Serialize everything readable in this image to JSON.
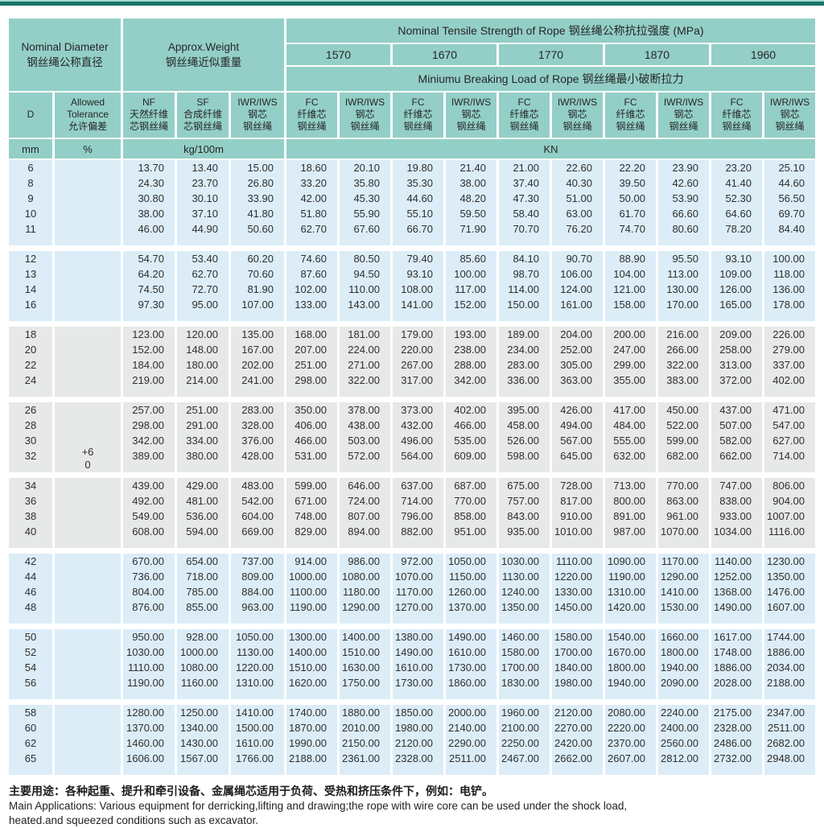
{
  "colors": {
    "header_bg": "#93cfc7",
    "band_blue": "#dcedf8",
    "band_gray": "#e7e8e8",
    "top_line_dark": "#17766b",
    "top_line_light": "#a6d8d0"
  },
  "header": {
    "nominal_diameter_en": "Nominal Diameter",
    "nominal_diameter_zh": "钢丝绳公称直径",
    "approx_weight_en": "Approx.Weight",
    "approx_weight_zh": "钢丝绳近似重量",
    "tensile_title": "Nominal Tensile Strength of Rope 钢丝绳公称抗拉强度 (MPa)",
    "strength_grades": [
      "1570",
      "1670",
      "1770",
      "1870",
      "1960"
    ],
    "breaking_title": "Miniumu Breaking Load of Rope 钢丝绳最小破断拉力",
    "sub_headers": [
      [
        "D"
      ],
      [
        "Allowed",
        "Tolerance",
        "允许偏差"
      ],
      [
        "NF",
        "天然纤维",
        "芯钢丝绳"
      ],
      [
        "SF",
        "合成纤维",
        "芯钢丝绳"
      ],
      [
        "IWR/IWS",
        "钢芯",
        "钢丝绳"
      ],
      [
        "FC",
        "纤维芯",
        "钢丝绳"
      ],
      [
        "IWR/IWS",
        "钢芯",
        "钢丝绳"
      ],
      [
        "FC",
        "纤维芯",
        "钢丝绳"
      ],
      [
        "IWR/IWS",
        "钢芯",
        "钢丝绳"
      ],
      [
        "FC",
        "纤维芯",
        "钢丝绳"
      ],
      [
        "IWR/IWS",
        "钢芯",
        "钢丝绳"
      ],
      [
        "FC",
        "纤维芯",
        "钢丝绳"
      ],
      [
        "IWR/IWS",
        "钢芯",
        "钢丝绳"
      ],
      [
        "FC",
        "纤维芯",
        "钢丝绳"
      ],
      [
        "IWR/IWS",
        "钢芯",
        "钢丝绳"
      ]
    ],
    "units": [
      {
        "label": "mm",
        "span": 1
      },
      {
        "label": "%",
        "span": 1
      },
      {
        "label": "kg/100m",
        "span": 3
      },
      {
        "label": "KN",
        "span": 10
      }
    ]
  },
  "tolerance": {
    "plus": "+6",
    "zero": "0"
  },
  "groups": [
    {
      "band": "blue",
      "rows": [
        [
          "6",
          "13.70",
          "13.40",
          "15.00",
          "18.60",
          "20.10",
          "19.80",
          "21.40",
          "21.00",
          "22.60",
          "22.20",
          "23.90",
          "23.20",
          "25.10"
        ],
        [
          "8",
          "24.30",
          "23.70",
          "26.80",
          "33.20",
          "35.80",
          "35.30",
          "38.00",
          "37.40",
          "40.30",
          "39.50",
          "42.60",
          "41.40",
          "44.60"
        ],
        [
          "9",
          "30.80",
          "30.10",
          "33.90",
          "42.00",
          "45.30",
          "44.60",
          "48.20",
          "47.30",
          "51.00",
          "50.00",
          "53.90",
          "52.30",
          "56.50"
        ],
        [
          "10",
          "38.00",
          "37.10",
          "41.80",
          "51.80",
          "55.90",
          "55.10",
          "59.50",
          "58.40",
          "63.00",
          "61.70",
          "66.60",
          "64.60",
          "69.70"
        ],
        [
          "11",
          "46.00",
          "44.90",
          "50.60",
          "62.70",
          "67.60",
          "66.70",
          "71.90",
          "70.70",
          "76.20",
          "74.70",
          "80.60",
          "78.20",
          "84.40"
        ]
      ]
    },
    {
      "band": "blue",
      "rows": [
        [
          "12",
          "54.70",
          "53.40",
          "60.20",
          "74.60",
          "80.50",
          "79.40",
          "85.60",
          "84.10",
          "90.70",
          "88.90",
          "95.50",
          "93.10",
          "100.00"
        ],
        [
          "13",
          "64.20",
          "62.70",
          "70.60",
          "87.60",
          "94.50",
          "93.10",
          "100.00",
          "98.70",
          "106.00",
          "104.00",
          "113.00",
          "109.00",
          "118.00"
        ],
        [
          "14",
          "74.50",
          "72.70",
          "81.90",
          "102.00",
          "110.00",
          "108.00",
          "117.00",
          "114.00",
          "124.00",
          "121.00",
          "130.00",
          "126.00",
          "136.00"
        ],
        [
          "16",
          "97.30",
          "95.00",
          "107.00",
          "133.00",
          "143.00",
          "141.00",
          "152.00",
          "150.00",
          "161.00",
          "158.00",
          "170.00",
          "165.00",
          "178.00"
        ]
      ]
    },
    {
      "band": "gray",
      "rows": [
        [
          "18",
          "123.00",
          "120.00",
          "135.00",
          "168.00",
          "181.00",
          "179.00",
          "193.00",
          "189.00",
          "204.00",
          "200.00",
          "216.00",
          "209.00",
          "226.00"
        ],
        [
          "20",
          "152.00",
          "148.00",
          "167.00",
          "207.00",
          "224.00",
          "220.00",
          "238.00",
          "234.00",
          "252.00",
          "247.00",
          "266.00",
          "258.00",
          "279.00"
        ],
        [
          "22",
          "184.00",
          "180.00",
          "202.00",
          "251.00",
          "271.00",
          "267.00",
          "288.00",
          "283.00",
          "305.00",
          "299.00",
          "322.00",
          "313.00",
          "337.00"
        ],
        [
          "24",
          "219.00",
          "214.00",
          "241.00",
          "298.00",
          "322.00",
          "317.00",
          "342.00",
          "336.00",
          "363.00",
          "355.00",
          "383.00",
          "372.00",
          "402.00"
        ]
      ]
    },
    {
      "band": "gray",
      "tolerance_label": true,
      "rows": [
        [
          "26",
          "257.00",
          "251.00",
          "283.00",
          "350.00",
          "378.00",
          "373.00",
          "402.00",
          "395.00",
          "426.00",
          "417.00",
          "450.00",
          "437.00",
          "471.00"
        ],
        [
          "28",
          "298.00",
          "291.00",
          "328.00",
          "406.00",
          "438.00",
          "432.00",
          "466.00",
          "458.00",
          "494.00",
          "484.00",
          "522.00",
          "507.00",
          "547.00"
        ],
        [
          "30",
          "342.00",
          "334.00",
          "376.00",
          "466.00",
          "503.00",
          "496.00",
          "535.00",
          "526.00",
          "567.00",
          "555.00",
          "599.00",
          "582.00",
          "627.00"
        ],
        [
          "32",
          "389.00",
          "380.00",
          "428.00",
          "531.00",
          "572.00",
          "564.00",
          "609.00",
          "598.00",
          "645.00",
          "632.00",
          "682.00",
          "662.00",
          "714.00"
        ]
      ]
    },
    {
      "band": "gray",
      "rows": [
        [
          "34",
          "439.00",
          "429.00",
          "483.00",
          "599.00",
          "646.00",
          "637.00",
          "687.00",
          "675.00",
          "728.00",
          "713.00",
          "770.00",
          "747.00",
          "806.00"
        ],
        [
          "36",
          "492.00",
          "481.00",
          "542.00",
          "671.00",
          "724.00",
          "714.00",
          "770.00",
          "757.00",
          "817.00",
          "800.00",
          "863.00",
          "838.00",
          "904.00"
        ],
        [
          "38",
          "549.00",
          "536.00",
          "604.00",
          "748.00",
          "807.00",
          "796.00",
          "858.00",
          "843.00",
          "910.00",
          "891.00",
          "961.00",
          "933.00",
          "1007.00"
        ],
        [
          "40",
          "608.00",
          "594.00",
          "669.00",
          "829.00",
          "894.00",
          "882.00",
          "951.00",
          "935.00",
          "1010.00",
          "987.00",
          "1070.00",
          "1034.00",
          "1116.00"
        ]
      ]
    },
    {
      "band": "blue",
      "rows": [
        [
          "42",
          "670.00",
          "654.00",
          "737.00",
          "914.00",
          "986.00",
          "972.00",
          "1050.00",
          "1030.00",
          "1110.00",
          "1090.00",
          "1170.00",
          "1140.00",
          "1230.00"
        ],
        [
          "44",
          "736.00",
          "718.00",
          "809.00",
          "1000.00",
          "1080.00",
          "1070.00",
          "1150.00",
          "1130.00",
          "1220.00",
          "1190.00",
          "1290.00",
          "1252.00",
          "1350.00"
        ],
        [
          "46",
          "804.00",
          "785.00",
          "884.00",
          "1100.00",
          "1180.00",
          "1170.00",
          "1260.00",
          "1240.00",
          "1330.00",
          "1310.00",
          "1410.00",
          "1368.00",
          "1476.00"
        ],
        [
          "48",
          "876.00",
          "855.00",
          "963.00",
          "1190.00",
          "1290.00",
          "1270.00",
          "1370.00",
          "1350.00",
          "1450.00",
          "1420.00",
          "1530.00",
          "1490.00",
          "1607.00"
        ]
      ]
    },
    {
      "band": "blue",
      "rows": [
        [
          "50",
          "950.00",
          "928.00",
          "1050.00",
          "1300.00",
          "1400.00",
          "1380.00",
          "1490.00",
          "1460.00",
          "1580.00",
          "1540.00",
          "1660.00",
          "1617.00",
          "1744.00"
        ],
        [
          "52",
          "1030.00",
          "1000.00",
          "1130.00",
          "1400.00",
          "1510.00",
          "1490.00",
          "1610.00",
          "1580.00",
          "1700.00",
          "1670.00",
          "1800.00",
          "1748.00",
          "1886.00"
        ],
        [
          "54",
          "1110.00",
          "1080.00",
          "1220.00",
          "1510.00",
          "1630.00",
          "1610.00",
          "1730.00",
          "1700.00",
          "1840.00",
          "1800.00",
          "1940.00",
          "1886.00",
          "2034.00"
        ],
        [
          "56",
          "1190.00",
          "1160.00",
          "1310.00",
          "1620.00",
          "1750.00",
          "1730.00",
          "1860.00",
          "1830.00",
          "1980.00",
          "1940.00",
          "2090.00",
          "2028.00",
          "2188.00"
        ]
      ]
    },
    {
      "band": "blue",
      "rows": [
        [
          "58",
          "1280.00",
          "1250.00",
          "1410.00",
          "1740.00",
          "1880.00",
          "1850.00",
          "2000.00",
          "1960.00",
          "2120.00",
          "2080.00",
          "2240.00",
          "2175.00",
          "2347.00"
        ],
        [
          "60",
          "1370.00",
          "1340.00",
          "1500.00",
          "1870.00",
          "2010.00",
          "1980.00",
          "2140.00",
          "2100.00",
          "2270.00",
          "2220.00",
          "2400.00",
          "2328.00",
          "2511.00"
        ],
        [
          "62",
          "1460.00",
          "1430.00",
          "1610.00",
          "1990.00",
          "2150.00",
          "2120.00",
          "2290.00",
          "2250.00",
          "2420.00",
          "2370.00",
          "2560.00",
          "2486.00",
          "2682.00"
        ],
        [
          "65",
          "1606.00",
          "1567.00",
          "1766.00",
          "2188.00",
          "2361.00",
          "2328.00",
          "2511.00",
          "2467.00",
          "2662.00",
          "2607.00",
          "2812.00",
          "2732.00",
          "2948.00"
        ]
      ]
    }
  ],
  "footer": {
    "zh": "主要用途：各种起重、提升和牵引设备、金属绳芯适用于负荷、受热和挤压条件下，例如：电铲。",
    "en1": "Main Applications: Various equipment for derricking,lifting and drawing;the rope with wire core can be used under the shock load,",
    "en2": "heated.and squeezed conditions such as excavator."
  }
}
